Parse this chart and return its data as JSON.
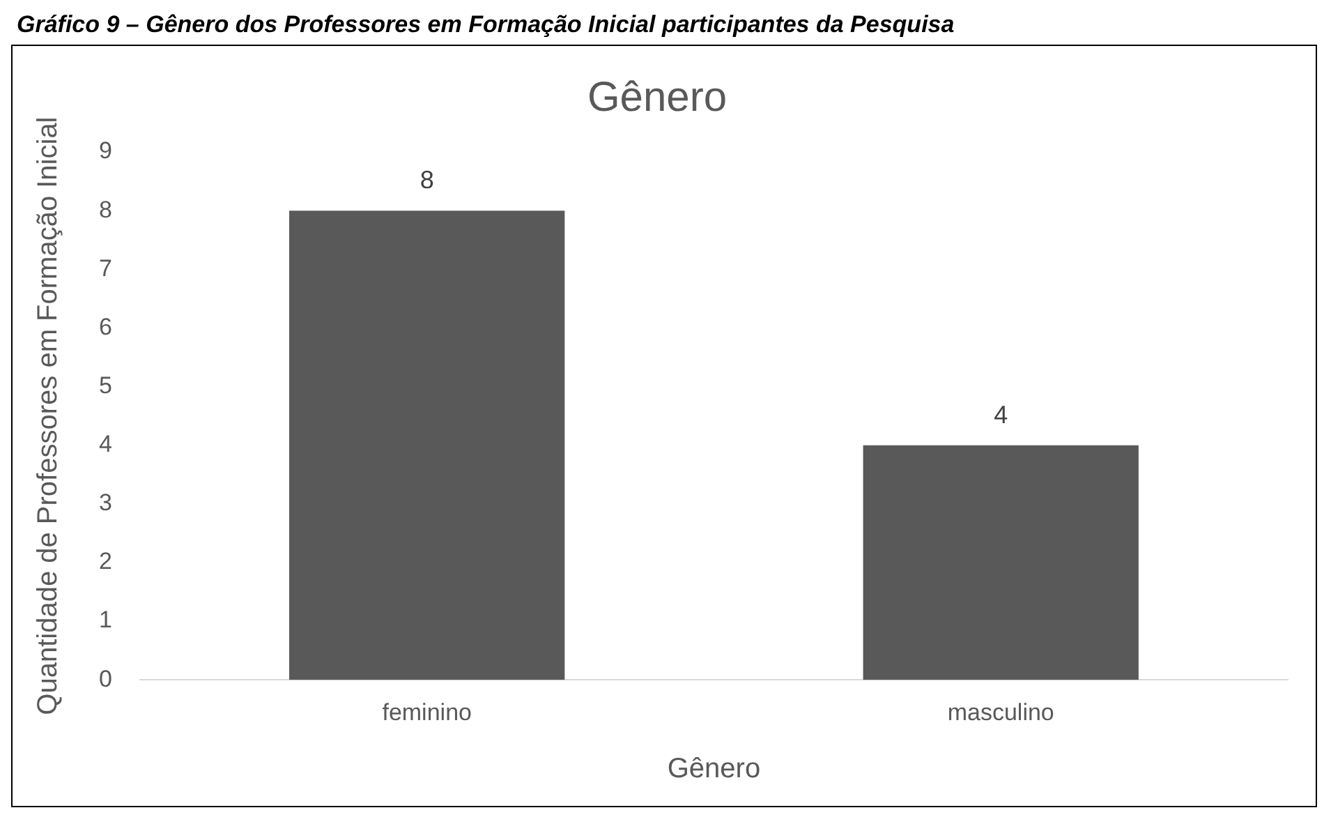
{
  "chart_data": {
    "type": "bar",
    "title": "Gênero",
    "xlabel": "Gênero",
    "ylabel": "Quantidade de Professores em Formação Inicial",
    "annotations": [
      "Gráfico 9 – Gênero dos Professores em Formação Inicial participantes da Pesquisa"
    ],
    "categories": [
      "feminino",
      "masculino"
    ],
    "values": [
      8,
      4
    ],
    "color": "#595959",
    "ylim": [
      0,
      9
    ],
    "yticks": [
      0,
      1,
      2,
      3,
      4,
      5,
      6,
      7,
      8,
      9
    ],
    "grid": false,
    "legend": false,
    "data_labels": true
  }
}
